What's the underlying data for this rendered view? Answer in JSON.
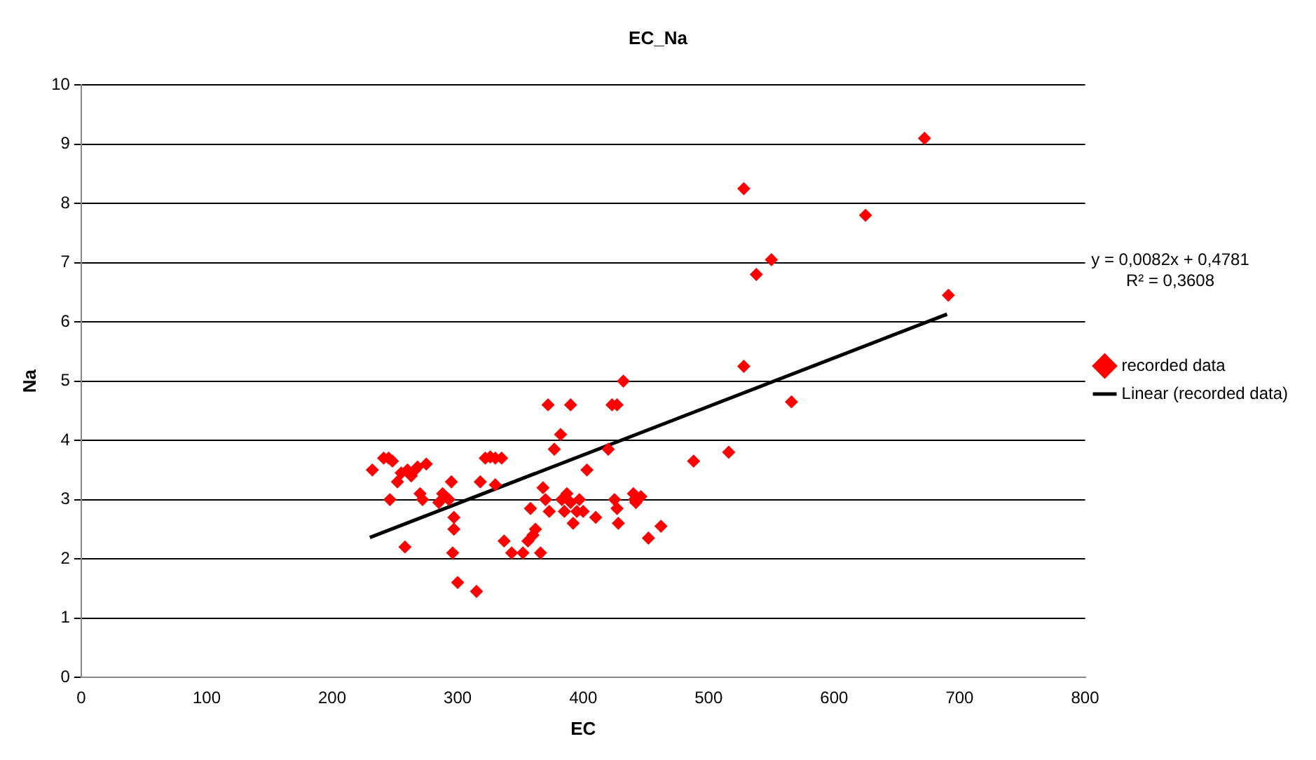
{
  "chart_data": {
    "type": "scatter",
    "title": "EC_Na",
    "xlabel": "EC",
    "ylabel": "Na",
    "xlim": [
      0,
      800
    ],
    "xticks": [
      0,
      100,
      200,
      300,
      400,
      500,
      600,
      700,
      800
    ],
    "ylim": [
      0,
      10
    ],
    "yticks": [
      0,
      1,
      2,
      3,
      4,
      5,
      6,
      7,
      8,
      9,
      10
    ],
    "grid": "y",
    "legend": "right",
    "marker": "diamond",
    "annotations": [
      "y = 0,0082x  + 0,4781\nR² = 0,3608"
    ],
    "series": [
      {
        "name": "recorded data",
        "color": "#ff0000",
        "x": [
          232,
          241,
          245,
          248,
          246,
          252,
          255,
          258,
          260,
          263,
          266,
          270,
          272,
          268,
          275,
          285,
          288,
          293,
          295,
          296,
          297,
          297,
          300,
          315,
          318,
          322,
          326,
          330,
          330,
          335,
          337,
          343,
          352,
          356,
          358,
          360,
          362,
          366,
          368,
          370,
          372,
          373,
          377,
          382,
          383,
          385,
          387,
          390,
          390,
          392,
          395,
          397,
          400,
          403,
          410,
          420,
          423,
          427,
          425,
          427,
          428,
          432,
          440,
          441,
          442,
          446,
          452,
          462,
          488,
          516,
          528,
          528,
          538,
          550,
          566,
          625,
          672,
          691
        ],
        "values": [
          3.5,
          3.7,
          3.7,
          3.65,
          3.0,
          3.3,
          3.45,
          2.2,
          3.5,
          3.4,
          3.5,
          3.1,
          3.0,
          3.55,
          3.6,
          2.95,
          3.1,
          3.0,
          3.3,
          2.1,
          2.5,
          2.7,
          1.6,
          1.45,
          3.3,
          3.7,
          3.72,
          3.7,
          3.25,
          3.7,
          2.3,
          2.1,
          2.1,
          2.3,
          2.85,
          2.4,
          2.5,
          2.1,
          3.2,
          3.0,
          4.6,
          2.8,
          3.85,
          4.1,
          3.0,
          2.8,
          3.1,
          4.6,
          2.95,
          2.6,
          2.8,
          3.0,
          2.8,
          3.5,
          2.7,
          3.85,
          4.6,
          4.6,
          3.0,
          2.85,
          2.6,
          5.0,
          3.1,
          3.0,
          2.95,
          3.05,
          2.35,
          2.55,
          3.65,
          3.8,
          8.25,
          5.25,
          6.8,
          7.05,
          4.65,
          7.8,
          9.1,
          6.45
        ]
      },
      {
        "name": "Linear (recorded data)",
        "type": "line",
        "color": "#000000",
        "marker": "none",
        "x": [
          230,
          690
        ],
        "values": [
          2.36,
          6.13
        ]
      }
    ]
  }
}
